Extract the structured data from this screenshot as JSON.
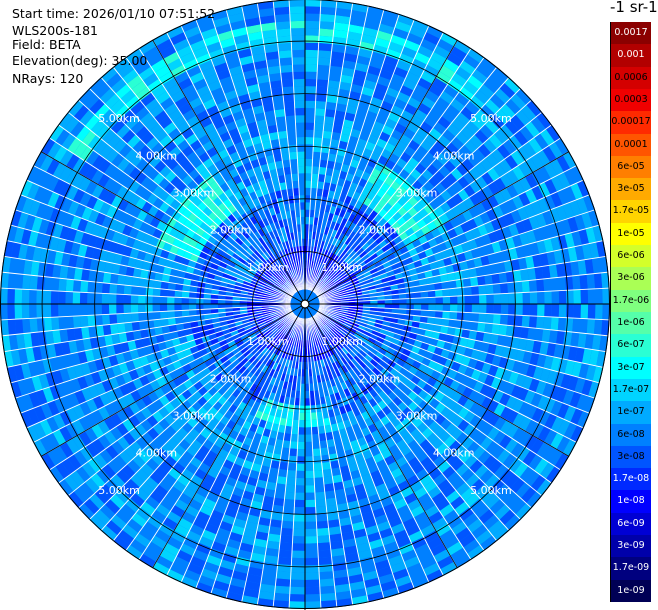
{
  "header": {
    "start_time": "Start time: 2026/01/10 07:51:52",
    "instrument": "WLS200s-181",
    "field": "Field: BETA",
    "elevation": "Elevation(deg): 35.00",
    "nrays": "NRays: 120"
  },
  "colorbar": {
    "unit_label": "-1 sr-1",
    "labels": [
      "0.0017",
      "0.001",
      "0.0006",
      "0.0003",
      "0.00017",
      "0.0001",
      "6e-05",
      "3e-05",
      "1.7e-05",
      "1e-05",
      "6e-06",
      "3e-06",
      "1.7e-06",
      "1e-06",
      "6e-07",
      "3e-07",
      "1.7e-07",
      "1e-07",
      "6e-08",
      "3e-08",
      "1.7e-08",
      "1e-08",
      "6e-09",
      "3e-09",
      "1.7e-09",
      "1e-09"
    ],
    "colors": [
      "#8b0000",
      "#b20000",
      "#d40000",
      "#f00000",
      "#ff2a00",
      "#ff5500",
      "#ff7f00",
      "#ffaa00",
      "#ffd400",
      "#ffff00",
      "#d4ff2a",
      "#aaff55",
      "#7fff7f",
      "#55ffaa",
      "#2affd4",
      "#00ffff",
      "#00d4ff",
      "#00aaff",
      "#0080ff",
      "#0055ff",
      "#002aff",
      "#0000ff",
      "#0000d4",
      "#0000aa",
      "#00007f",
      "#000055"
    ],
    "text_colors": [
      "#ffffff",
      "#ffffff",
      "#000000",
      "#000000",
      "#000000",
      "#000000",
      "#000000",
      "#000000",
      "#000000",
      "#000000",
      "#000000",
      "#000000",
      "#000000",
      "#000000",
      "#000000",
      "#000000",
      "#000000",
      "#000000",
      "#000000",
      "#000000",
      "#ffffff",
      "#ffffff",
      "#ffffff",
      "#ffffff",
      "#ffffff",
      "#ffffff"
    ]
  },
  "chart_data": {
    "type": "heatmap",
    "projection": "polar-ppi",
    "field": "BETA",
    "elevation_deg": 35.0,
    "n_rays": 120,
    "max_range_km": 5.8,
    "range_rings_km": [
      1,
      2,
      3,
      4,
      5
    ],
    "ring_labels": [
      "1.00km",
      "2.00km",
      "3.00km",
      "4.00km",
      "5.00km"
    ],
    "color_scale": "log",
    "value_range": [
      1e-09,
      0.0017
    ],
    "dominant_range": [
      3e-08,
      1e-07
    ]
  }
}
